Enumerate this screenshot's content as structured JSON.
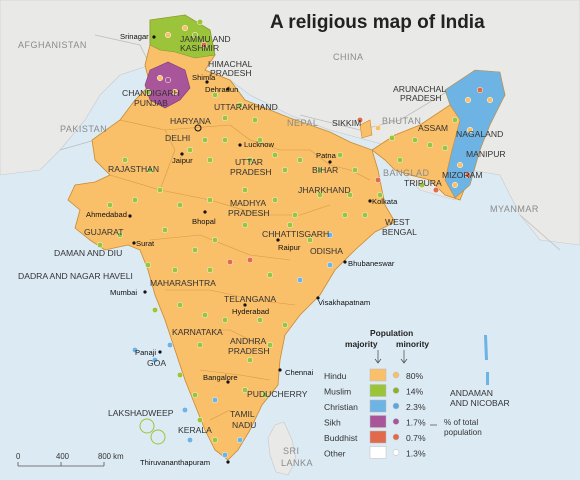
{
  "title": "A religious map of India",
  "countries": {
    "afghanistan": "AFGHANISTAN",
    "pakistan": "PAKISTAN",
    "china": "CHINA",
    "nepal": "NEPAL",
    "bhutan": "BHUTAN",
    "bangladesh": "BANGLAD",
    "myanmar": "MYANMAR",
    "srilanka_1": "SRI",
    "srilanka_2": "LANKA"
  },
  "states": {
    "jk_1": "JAMMU AND",
    "jk_2": "KASHMIR",
    "himachal_1": "HIMACHAL",
    "himachal_2": "PRADESH",
    "chandigarh": "CHANDIGARH",
    "punjab": "PUNJAB",
    "uttarakhand": "UTTARAKHAND",
    "haryana": "HARYANA",
    "delhi": "DELHI",
    "rajasthan": "RAJASTHAN",
    "up_1": "UTTAR",
    "up_2": "PRADESH",
    "bihar": "BIHAR",
    "sikkim": "SIKKIM",
    "arunachal_1": "ARUNACHAL",
    "arunachal_2": "PRADESH",
    "assam": "ASSAM",
    "nagaland": "NAGALAND",
    "manipur": "MANIPUR",
    "mizoram": "MIZORAM",
    "tripura": "TRIPURA",
    "jharkhand": "JHARKHAND",
    "westbengal_1": "WEST",
    "westbengal_2": "BENGAL",
    "gujarat": "GUJARAT",
    "mp_1": "MADHYA",
    "mp_2": "PRADESH",
    "chhattisgarh": "CHHATTISGARH",
    "odisha": "ODISHA",
    "daman": "DAMAN AND DIU",
    "dadra": "DADRA AND NAGAR HAVELI",
    "maharashtra": "MAHARASHTRA",
    "telangana": "TELANGANA",
    "karnataka": "KARNATAKA",
    "goa": "GOA",
    "ap_1": "ANDHRA",
    "ap_2": "PRADESH",
    "puducherry": "PUDUCHERRY",
    "tn_1": "TAMIL",
    "tn_2": "NADU",
    "kerala": "KERALA",
    "lakshadweep": "LAKSHADWEEP",
    "andaman_1": "ANDAMAN",
    "andaman_2": "AND NICOBAR"
  },
  "cities": {
    "srinagar": "Srinagar",
    "shimla": "Shimla",
    "dehradun": "Dehradun",
    "lucknow": "Lucknow",
    "patna": "Patna",
    "jaipur": "Jaipur",
    "kolkata": "Kolkata",
    "ahmedabad": "Ahmedabad",
    "bhopal": "Bhopal",
    "raipur": "Raipur",
    "bhubaneswar": "Bhubaneswar",
    "surat": "Surat",
    "mumbai": "Mumbai",
    "hyderabad": "Hyderabad",
    "visakhapatnam": "Visakhapatnam",
    "panaji": "Panaji",
    "chennai": "Chennai",
    "bangalore": "Bangalore",
    "thiruvananthapuram": "Thiruvananthapuram"
  },
  "legend": {
    "title_1": "Population",
    "col_majority": "majority",
    "col_minority": "minority",
    "rows": [
      {
        "name": "Hindu",
        "pct": "80%",
        "color": "#f9bf69",
        "dot": "#f9bf69"
      },
      {
        "name": "Muslim",
        "pct": "14%",
        "color": "#9cc43a",
        "dot": "#8ab32c"
      },
      {
        "name": "Christian",
        "pct": "2.3%",
        "color": "#6db3e3",
        "dot": "#5aa6dd"
      },
      {
        "name": "Sikh",
        "pct": "1.7%",
        "color": "#a8559a",
        "dot": "#a8559a"
      },
      {
        "name": "Buddhist",
        "pct": "0.7%",
        "color": "#e06a4b",
        "dot": "#e06a4b"
      },
      {
        "name": "Other",
        "pct": "1.3%",
        "color": "#ffffff",
        "dot": "#ffffff"
      }
    ],
    "note_1": "% of total",
    "note_2": "population"
  },
  "scale": {
    "zero": "0",
    "mid": "400",
    "end": "800 km"
  },
  "colors": {
    "sea": "#dceaf4",
    "land": "#e9e9e7",
    "hindu": "#f9bf69",
    "muslim": "#9cc43a",
    "christian": "#6db3e3",
    "sikh": "#a8559a",
    "buddhist": "#e06a4b"
  }
}
